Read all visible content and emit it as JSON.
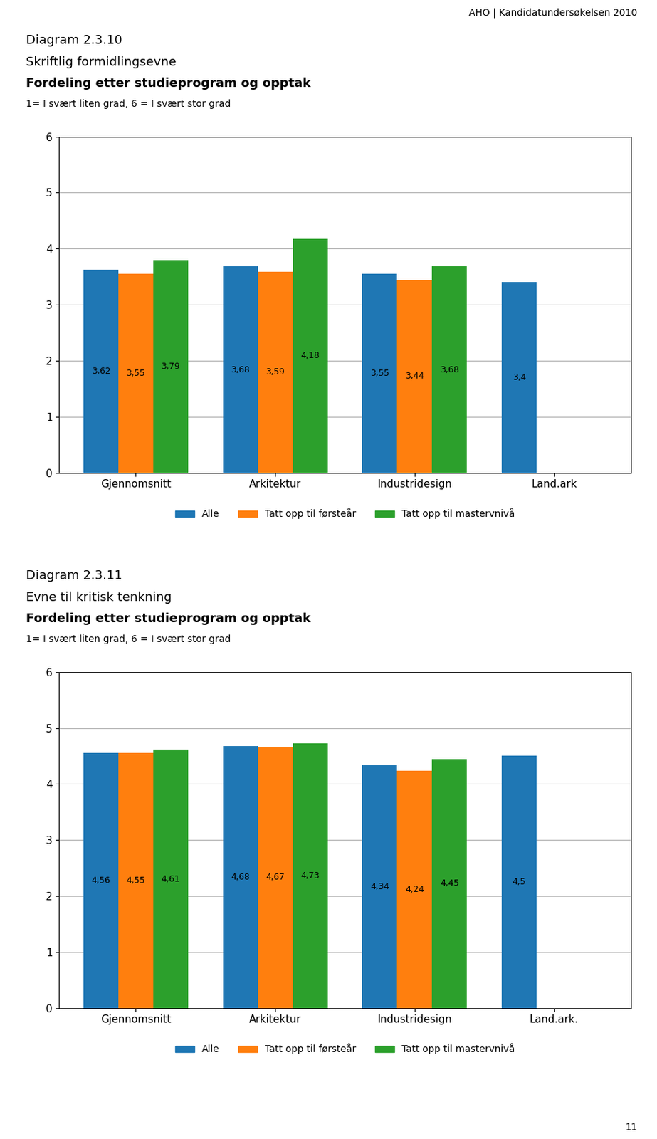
{
  "page_header": "AHO | Kandidatundersøkelsen 2010",
  "page_number": "11",
  "chart_data": [
    {
      "type": "bar",
      "label": "Diagram 2.3.10",
      "title": "Skriftlig formidlingsevne",
      "subtitle": "Fordeling etter studieprogram og opptak",
      "note": "1= I svært liten grad, 6 = I svært stor grad",
      "categories": [
        "Gjennomsnitt",
        "Arkitektur",
        "Industridesign",
        "Land.ark"
      ],
      "series": [
        {
          "name": "Alle",
          "values": [
            3.62,
            3.68,
            3.55,
            3.4
          ],
          "value_labels": [
            "3,62",
            "3,68",
            "3,55",
            "3,4"
          ]
        },
        {
          "name": "Tatt opp til førsteår",
          "values": [
            3.55,
            3.59,
            3.44,
            null
          ],
          "value_labels": [
            "3,55",
            "3,59",
            "3,44",
            null
          ]
        },
        {
          "name": "Tatt opp til mastervnivå",
          "values": [
            3.79,
            4.18,
            3.68,
            null
          ],
          "value_labels": [
            "3,79",
            "4,18",
            "3,68",
            null
          ]
        }
      ],
      "ylim": [
        0,
        6
      ],
      "yticks": [
        0,
        1,
        2,
        3,
        4,
        5,
        6
      ],
      "grid": true,
      "legend": "upper center",
      "data_labels": true
    },
    {
      "type": "bar",
      "label": "Diagram 2.3.11",
      "title": "Evne til kritisk tenkning",
      "subtitle": "Fordeling etter studieprogram og opptak",
      "note": "1= I svært liten grad, 6 = I svært stor grad",
      "categories": [
        "Gjennomsnitt",
        "Arkitektur",
        "Industridesign",
        "Land.ark."
      ],
      "series": [
        {
          "name": "Alle",
          "values": [
            4.56,
            4.68,
            4.34,
            4.5
          ],
          "value_labels": [
            "4,56",
            "4,68",
            "4,34",
            "4,5"
          ]
        },
        {
          "name": "Tatt opp til førsteår",
          "values": [
            4.55,
            4.67,
            4.24,
            null
          ],
          "value_labels": [
            "4,55",
            "4,67",
            "4,24",
            null
          ]
        },
        {
          "name": "Tatt opp til mastervnivå",
          "values": [
            4.61,
            4.73,
            4.45,
            null
          ],
          "value_labels": [
            "4,61",
            "4,73",
            "4,45",
            null
          ]
        }
      ],
      "ylim": [
        0,
        6
      ],
      "yticks": [
        0,
        1,
        2,
        3,
        4,
        5,
        6
      ],
      "grid": true,
      "legend": "upper center",
      "data_labels": true
    }
  ]
}
